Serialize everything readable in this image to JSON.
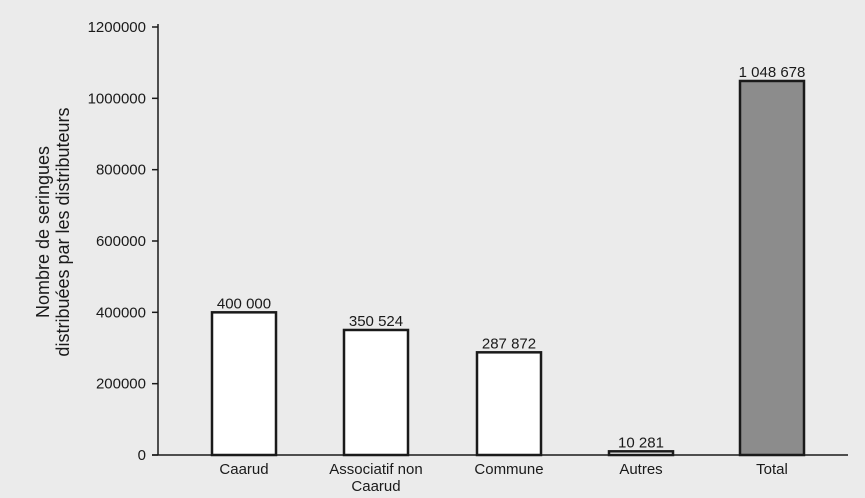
{
  "chart_data": {
    "type": "bar",
    "categories": [
      "Caarud",
      "Associatif non Caarud",
      "Commune",
      "Autres",
      "Total"
    ],
    "category_lines": [
      [
        "Caarud"
      ],
      [
        "Associatif non",
        "Caarud"
      ],
      [
        "Commune"
      ],
      [
        "Autres"
      ],
      [
        "Total"
      ]
    ],
    "values": [
      400000,
      350524,
      287872,
      10281,
      1048678
    ],
    "value_labels": [
      "400 000",
      "350 524",
      "287 872",
      "10 281",
      "1 048 678"
    ],
    "highlight_index": 4,
    "title": "",
    "xlabel": "",
    "ylabel_lines": [
      "Nombre de seringues",
      "distribuées par les distributeurs"
    ],
    "ylim": [
      0,
      1200000
    ],
    "yticks": [
      0,
      200000,
      400000,
      600000,
      800000,
      1000000,
      1200000
    ],
    "ytick_labels": [
      "0",
      "200000",
      "400000",
      "600000",
      "800000",
      "1000000",
      "1200000"
    ],
    "grid": false,
    "colors": {
      "bar_fill": "#ffffff",
      "highlight_fill": "#8c8c8c",
      "stroke": "#1a1a1a",
      "background": "#ebebeb"
    }
  }
}
